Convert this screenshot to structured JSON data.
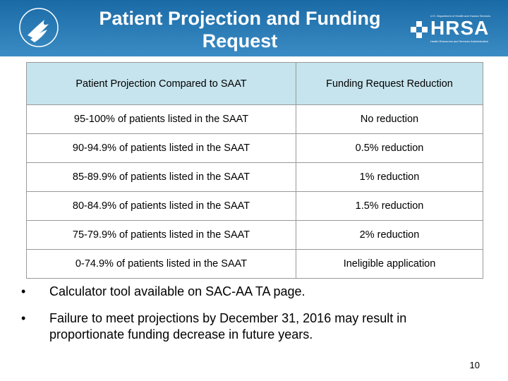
{
  "header": {
    "title": "Patient Projection and Funding Request",
    "logo_text": "HRSA",
    "logo_line1": "U.S. Department of Health and Human Services",
    "logo_line2": "Health Resources and Services Administration"
  },
  "table": {
    "columns": [
      "Patient Projection Compared to SAAT",
      "Funding Request Reduction"
    ],
    "rows": [
      [
        "95-100% of patients listed in the SAAT",
        "No reduction"
      ],
      [
        "90-94.9% of patients listed in the SAAT",
        "0.5% reduction"
      ],
      [
        "85-89.9% of patients listed in the SAAT",
        "1% reduction"
      ],
      [
        "80-84.9% of patients listed in the SAAT",
        "1.5% reduction"
      ],
      [
        "75-79.9% of patients listed in the SAAT",
        "2% reduction"
      ],
      [
        "0-74.9% of patients listed in the SAAT",
        "Ineligible application"
      ]
    ]
  },
  "bullets": [
    "Calculator tool available on SAC-AA TA page.",
    "Failure to meet projections by December 31, 2016 may result in proportionate funding decrease in future years."
  ],
  "page_number": "10"
}
